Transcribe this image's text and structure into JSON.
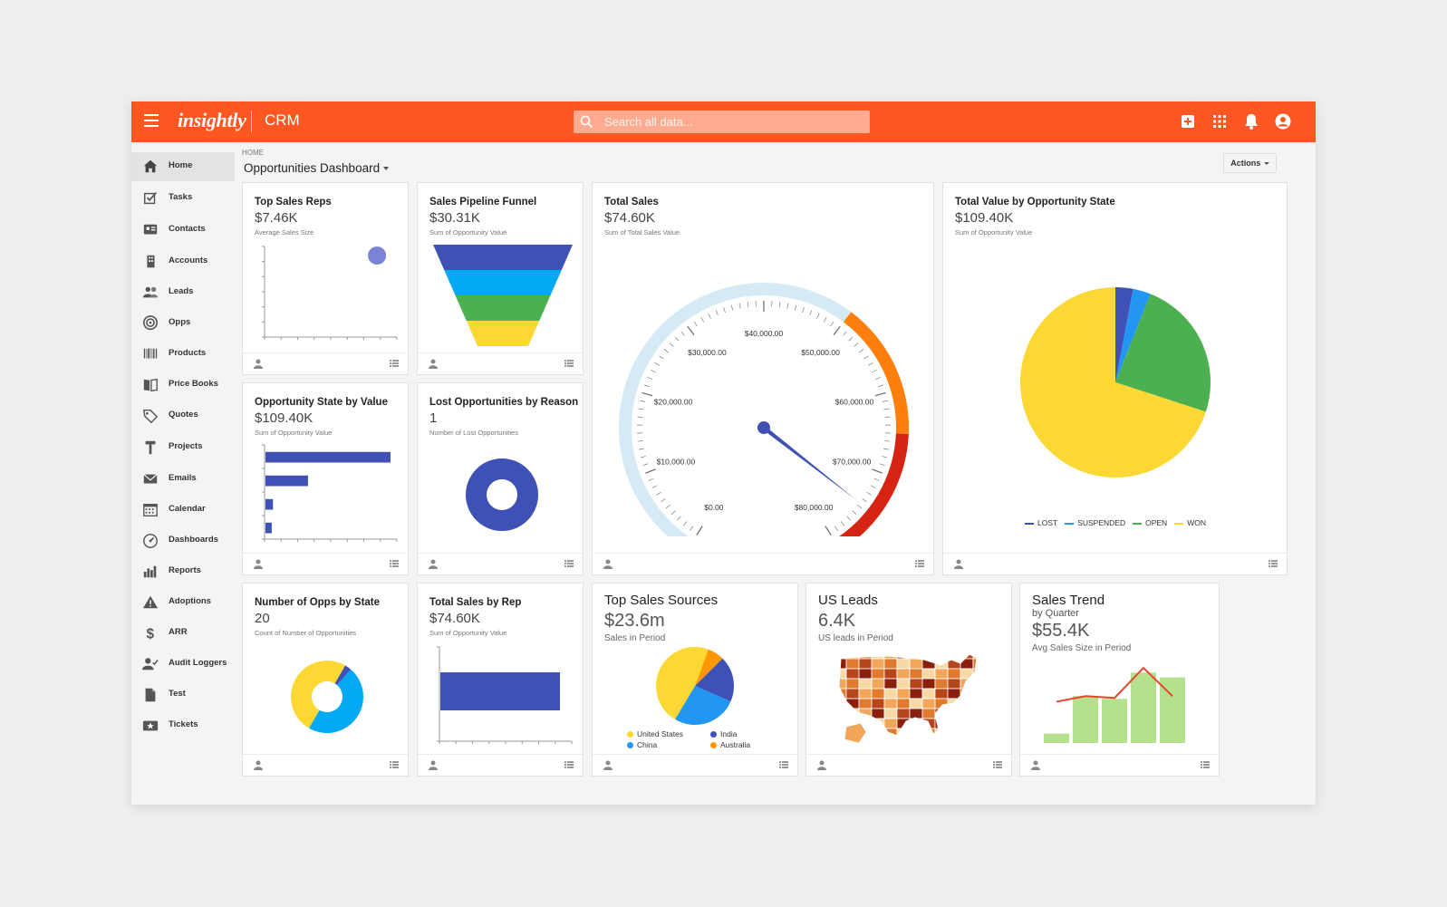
{
  "topbar": {
    "logo": "insightly",
    "product": "CRM",
    "search_placeholder": "Search all data...",
    "icons": [
      "add-icon",
      "apps-grid-icon",
      "bell-icon",
      "user-circle-icon"
    ]
  },
  "sidebar": {
    "items": [
      {
        "label": "Home",
        "icon": "home-icon",
        "active": true
      },
      {
        "label": "Tasks",
        "icon": "checkbox-icon"
      },
      {
        "label": "Contacts",
        "icon": "contact-card-icon"
      },
      {
        "label": "Accounts",
        "icon": "building-icon"
      },
      {
        "label": "Leads",
        "icon": "people-icon"
      },
      {
        "label": "Opps",
        "icon": "target-icon"
      },
      {
        "label": "Products",
        "icon": "barcode-icon"
      },
      {
        "label": "Price Books",
        "icon": "book-icon"
      },
      {
        "label": "Quotes",
        "icon": "tag-icon"
      },
      {
        "label": "Projects",
        "icon": "hammer-icon"
      },
      {
        "label": "Emails",
        "icon": "envelope-icon"
      },
      {
        "label": "Calendar",
        "icon": "calendar-icon"
      },
      {
        "label": "Dashboards",
        "icon": "gauge-icon"
      },
      {
        "label": "Reports",
        "icon": "bar-chart-icon"
      },
      {
        "label": "Adoptions",
        "icon": "warning-icon"
      },
      {
        "label": "ARR",
        "icon": "dollar-icon"
      },
      {
        "label": "Audit Loggers",
        "icon": "user-check-icon"
      },
      {
        "label": "Test",
        "icon": "document-icon"
      },
      {
        "label": "Tickets",
        "icon": "ticket-icon"
      }
    ]
  },
  "main": {
    "breadcrumb": "HOME",
    "title": "Opportunities Dashboard",
    "actions_label": "Actions"
  },
  "cards": {
    "top_sales_reps": {
      "title": "Top Sales Reps",
      "value": "$7.46K",
      "subtitle": "Average Sales Size"
    },
    "pipeline_funnel": {
      "title": "Sales Pipeline Funnel",
      "value": "$30.31K",
      "subtitle": "Sum of Opportunity Value"
    },
    "total_sales": {
      "title": "Total Sales",
      "value": "$74.60K",
      "subtitle": "Sum of Total Sales Value"
    },
    "value_by_state": {
      "title": "Total Value by Opportunity State",
      "value": "$109.40K",
      "subtitle": "Sum of Opportunity Value"
    },
    "state_by_value": {
      "title": "Opportunity State by Value",
      "value": "$109.40K",
      "subtitle": "Sum of Opportunity Value"
    },
    "lost_by_reason": {
      "title": "Lost Opportunities by Reason",
      "value": "1",
      "subtitle": "Number of Lost Opportunities"
    },
    "opps_by_state": {
      "title": "Number of Opps by State",
      "value": "20",
      "subtitle": "Count of Number of Opportunities"
    },
    "sales_by_rep": {
      "title": "Total Sales by Rep",
      "value": "$74.60K",
      "subtitle": "Sum of Opportunity Value"
    },
    "top_sources": {
      "title": "Top Sales Sources",
      "value": "$23.6m",
      "subtitle": "Sales in Period"
    },
    "us_leads": {
      "title": "US Leads",
      "value": "6.4K",
      "subtitle": "US leads in Period"
    },
    "sales_trend": {
      "title": "Sales Trend",
      "value": "$55.4K",
      "subtitle": "Avg Sales Size in Period",
      "extra": "by Quarter"
    }
  },
  "chart_data": [
    {
      "id": "top_sales_reps",
      "type": "scatter",
      "points": [
        {
          "x": 0.85,
          "y": 0.9
        }
      ],
      "color": "#7b83d6"
    },
    {
      "id": "pipeline_funnel",
      "type": "funnel",
      "values": [
        4,
        3,
        2,
        1
      ],
      "colors": [
        "#3f51b5",
        "#03a9f4",
        "#4caf50",
        "#fdd835"
      ]
    },
    {
      "id": "total_sales",
      "type": "gauge",
      "min": 0,
      "max": 80000,
      "value": 74600,
      "tick_labels": [
        "$0.00",
        "$10,000.00",
        "$20,000.00",
        "$30,000.00",
        "$40,000.00",
        "$50,000.00",
        "$60,000.00",
        "$70,000.00",
        "$80,000.00"
      ],
      "bands": [
        {
          "from": 0,
          "to": 50000,
          "color": "#d6eaf5"
        },
        {
          "from": 50000,
          "to": 65000,
          "color": "#ff7f0e"
        },
        {
          "from": 65000,
          "to": 80000,
          "color": "#d62412"
        }
      ]
    },
    {
      "id": "value_by_state",
      "type": "pie",
      "slices": [
        {
          "name": "LOST",
          "value": 3,
          "color": "#3f51b5"
        },
        {
          "name": "SUSPENDED",
          "value": 3,
          "color": "#2196f3"
        },
        {
          "name": "OPEN",
          "value": 24,
          "color": "#4caf50"
        },
        {
          "name": "WON",
          "value": 70,
          "color": "#fdd835"
        }
      ],
      "legend": "bottom"
    },
    {
      "id": "state_by_value",
      "type": "bar",
      "orientation": "horizontal",
      "values": [
        100,
        34,
        6,
        5
      ],
      "color": "#3f51b5"
    },
    {
      "id": "lost_by_reason",
      "type": "pie",
      "donut": true,
      "slices": [
        {
          "value": 1,
          "color": "#3f51b5"
        }
      ]
    },
    {
      "id": "opps_by_state",
      "type": "pie",
      "donut": true,
      "slices": [
        {
          "value": 3,
          "color": "#3f51b5"
        },
        {
          "value": 47,
          "color": "#03a9f4"
        },
        {
          "value": 50,
          "color": "#fdd835"
        }
      ]
    },
    {
      "id": "sales_by_rep",
      "type": "bar",
      "orientation": "horizontal",
      "values": [
        74600
      ],
      "color": "#3f51b5"
    },
    {
      "id": "top_sources",
      "type": "pie",
      "slices": [
        {
          "name": "United States",
          "value": 47,
          "color": "#fdd835"
        },
        {
          "name": "China",
          "value": 27,
          "color": "#2196f3"
        },
        {
          "name": "India",
          "value": 19,
          "color": "#3f51b5"
        },
        {
          "name": "Australia",
          "value": 7,
          "color": "#ff9800"
        }
      ],
      "legend": "bottom"
    },
    {
      "id": "us_leads",
      "type": "map",
      "region": "US states choropleth",
      "colors": [
        "#f7d9a8",
        "#f2a65a",
        "#e07a2e",
        "#b5451b",
        "#8b1f0e"
      ]
    },
    {
      "id": "sales_trend",
      "type": "bar+line",
      "bars": [
        1,
        5,
        4.7,
        7.5,
        7
      ],
      "line": [
        4.4,
        5,
        4.8,
        8,
        5
      ],
      "bar_color": "#b5e08d",
      "line_color": "#e8452c"
    }
  ]
}
